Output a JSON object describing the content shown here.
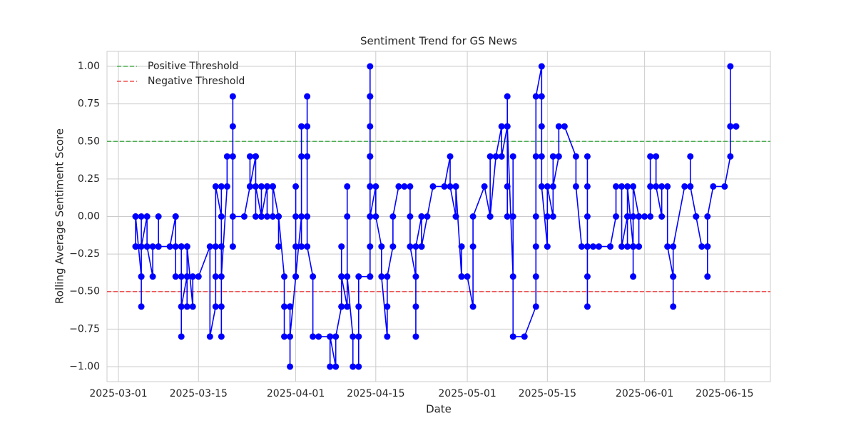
{
  "chart_data": {
    "type": "line",
    "title": "Sentiment Trend for GS News",
    "x_label": "Date",
    "y_label": "Rolling Average Sentiment Score",
    "grid": true,
    "legend_position": "upper left",
    "xlim": [
      "2025-02-27",
      "2025-06-23"
    ],
    "xticks": [
      "2025-03-01",
      "2025-03-15",
      "2025-04-01",
      "2025-04-15",
      "2025-05-01",
      "2025-05-15",
      "2025-06-01",
      "2025-06-15"
    ],
    "ylim": [
      -1.1,
      1.1
    ],
    "yticks": [
      {
        "value": -1,
        "label": "−1.00"
      },
      {
        "value": -0.75,
        "label": "−0.75"
      },
      {
        "value": -0.5,
        "label": "−0.50"
      },
      {
        "value": -0.25,
        "label": "−0.25"
      },
      {
        "value": 0,
        "label": "0.00"
      },
      {
        "value": 0.25,
        "label": "0.25"
      },
      {
        "value": 0.5,
        "label": "0.50"
      },
      {
        "value": 0.75,
        "label": "0.75"
      },
      {
        "value": 1,
        "label": "1.00"
      }
    ],
    "thresholds": [
      {
        "name": "Positive Threshold",
        "value": 0.5,
        "color": "#4caf50"
      },
      {
        "name": "Negative Threshold",
        "value": -0.5,
        "color": "#f05050"
      }
    ],
    "series": [
      {
        "color": "#0000ff",
        "x": [
          "2025-03-04",
          "2025-03-04",
          "2025-03-04",
          "2025-03-04",
          "2025-03-05",
          "2025-03-05",
          "2025-03-05",
          "2025-03-05",
          "2025-03-05",
          "2025-03-06",
          "2025-03-06",
          "2025-03-06",
          "2025-03-06",
          "2025-03-07",
          "2025-03-07",
          "2025-03-08",
          "2025-03-08",
          "2025-03-08",
          "2025-03-10",
          "2025-03-11",
          "2025-03-11",
          "2025-03-11",
          "2025-03-11",
          "2025-03-12",
          "2025-03-12",
          "2025-03-12",
          "2025-03-12",
          "2025-03-12",
          "2025-03-12",
          "2025-03-13",
          "2025-03-13",
          "2025-03-13",
          "2025-03-13",
          "2025-03-13",
          "2025-03-14",
          "2025-03-14",
          "2025-03-15",
          "2025-03-17",
          "2025-03-17",
          "2025-03-18",
          "2025-03-18",
          "2025-03-18",
          "2025-03-18",
          "2025-03-19",
          "2025-03-19",
          "2025-03-19",
          "2025-03-19",
          "2025-03-19",
          "2025-03-19",
          "2025-03-20",
          "2025-03-20",
          "2025-03-21",
          "2025-03-21",
          "2025-03-21",
          "2025-03-21",
          "2025-03-21",
          "2025-03-23",
          "2025-03-24",
          "2025-03-24",
          "2025-03-24",
          "2025-03-25",
          "2025-03-25",
          "2025-03-25",
          "2025-03-25",
          "2025-03-26",
          "2025-03-26",
          "2025-03-26",
          "2025-03-27",
          "2025-03-27",
          "2025-03-27",
          "2025-03-28",
          "2025-03-28",
          "2025-03-28",
          "2025-03-29",
          "2025-03-29",
          "2025-03-29",
          "2025-03-30",
          "2025-03-30",
          "2025-03-30",
          "2025-03-31",
          "2025-03-31",
          "2025-03-31",
          "2025-03-31",
          "2025-04-01",
          "2025-04-01",
          "2025-04-01",
          "2025-04-01",
          "2025-04-01",
          "2025-04-02",
          "2025-04-02",
          "2025-04-02",
          "2025-04-02",
          "2025-04-03",
          "2025-04-03",
          "2025-04-03",
          "2025-04-03",
          "2025-04-03",
          "2025-04-04",
          "2025-04-04",
          "2025-04-05",
          "2025-04-07",
          "2025-04-07",
          "2025-04-07",
          "2025-04-08",
          "2025-04-08",
          "2025-04-09",
          "2025-04-09",
          "2025-04-09",
          "2025-04-09",
          "2025-04-09",
          "2025-04-10",
          "2025-04-10",
          "2025-04-10",
          "2025-04-10",
          "2025-04-11",
          "2025-04-11",
          "2025-04-12",
          "2025-04-12",
          "2025-04-12",
          "2025-04-12",
          "2025-04-14",
          "2025-04-14",
          "2025-04-14",
          "2025-04-14",
          "2025-04-14",
          "2025-04-14",
          "2025-04-14",
          "2025-04-14",
          "2025-04-14",
          "2025-04-14",
          "2025-04-14",
          "2025-04-14",
          "2025-04-14",
          "2025-04-15",
          "2025-04-15",
          "2025-04-16",
          "2025-04-16",
          "2025-04-17",
          "2025-04-17",
          "2025-04-17",
          "2025-04-18",
          "2025-04-18",
          "2025-04-19",
          "2025-04-20",
          "2025-04-21",
          "2025-04-21",
          "2025-04-21",
          "2025-04-22",
          "2025-04-22",
          "2025-04-22",
          "2025-04-22",
          "2025-04-23",
          "2025-04-23",
          "2025-04-23",
          "2025-04-23",
          "2025-04-24",
          "2025-04-25",
          "2025-04-27",
          "2025-04-28",
          "2025-04-28",
          "2025-04-29",
          "2025-04-29",
          "2025-04-29",
          "2025-04-29",
          "2025-04-30",
          "2025-04-30",
          "2025-04-30",
          "2025-05-01",
          "2025-05-02",
          "2025-05-02",
          "2025-05-02",
          "2025-05-04",
          "2025-05-05",
          "2025-05-05",
          "2025-05-05",
          "2025-05-06",
          "2025-05-07",
          "2025-05-07",
          "2025-05-08",
          "2025-05-08",
          "2025-05-08",
          "2025-05-08",
          "2025-05-08",
          "2025-05-09",
          "2025-05-09",
          "2025-05-09",
          "2025-05-09",
          "2025-05-11",
          "2025-05-13",
          "2025-05-13",
          "2025-05-13",
          "2025-05-13",
          "2025-05-13",
          "2025-05-13",
          "2025-05-14",
          "2025-05-14",
          "2025-05-14",
          "2025-05-14",
          "2025-05-14",
          "2025-05-15",
          "2025-05-15",
          "2025-05-15",
          "2025-05-16",
          "2025-05-16",
          "2025-05-16",
          "2025-05-17",
          "2025-05-17",
          "2025-05-18",
          "2025-05-20",
          "2025-05-20",
          "2025-05-21",
          "2025-05-22",
          "2025-05-22",
          "2025-05-22",
          "2025-05-22",
          "2025-05-22",
          "2025-05-22",
          "2025-05-22",
          "2025-05-23",
          "2025-05-24",
          "2025-05-26",
          "2025-05-27",
          "2025-05-27",
          "2025-05-28",
          "2025-05-28",
          "2025-05-29",
          "2025-05-29",
          "2025-05-29",
          "2025-05-29",
          "2025-05-30",
          "2025-05-30",
          "2025-05-30",
          "2025-05-30",
          "2025-05-30",
          "2025-05-31",
          "2025-05-31",
          "2025-05-31",
          "2025-06-01",
          "2025-06-02",
          "2025-06-02",
          "2025-06-02",
          "2025-06-03",
          "2025-06-03",
          "2025-06-04",
          "2025-06-04",
          "2025-06-05",
          "2025-06-05",
          "2025-06-06",
          "2025-06-06",
          "2025-06-06",
          "2025-06-06",
          "2025-06-08",
          "2025-06-09",
          "2025-06-09",
          "2025-06-09",
          "2025-06-10",
          "2025-06-10",
          "2025-06-11",
          "2025-06-12",
          "2025-06-12",
          "2025-06-12",
          "2025-06-12",
          "2025-06-13",
          "2025-06-15",
          "2025-06-16",
          "2025-06-16",
          "2025-06-16",
          "2025-06-16",
          "2025-06-17",
          "2025-06-17"
        ],
        "values": [
          -0.2,
          0,
          -0.2,
          0,
          -0.4,
          -0.6,
          -0.4,
          0,
          -0.2,
          0,
          -0.2,
          0,
          -0.2,
          -0.4,
          -0.2,
          -0.2,
          0,
          -0.2,
          -0.2,
          0,
          -0.2,
          0,
          -0.4,
          -0.4,
          -0.2,
          -0.6,
          -0.8,
          -0.2,
          -0.6,
          -0.4,
          -0.2,
          -0.6,
          -0.4,
          -0.2,
          -0.6,
          -0.4,
          -0.4,
          -0.2,
          -0.8,
          -0.6,
          -0.4,
          -0.2,
          0.2,
          0,
          0.2,
          -0.6,
          -0.8,
          -0.2,
          -0.4,
          0.2,
          0.4,
          0.4,
          0.6,
          0.8,
          -0.2,
          0,
          0,
          0.2,
          0.4,
          0.2,
          0.4,
          0,
          0.4,
          0.2,
          0,
          0.2,
          0,
          0.2,
          0,
          0.2,
          0.2,
          0,
          0.2,
          0,
          -0.2,
          0,
          -0.4,
          -0.8,
          -0.6,
          -0.6,
          -0.6,
          -1.0,
          -0.8,
          -0.4,
          0,
          0.2,
          -0.2,
          -0.4,
          0,
          -0.2,
          0.4,
          0.6,
          0.6,
          0.8,
          0.4,
          0,
          -0.2,
          -0.4,
          -0.8,
          -0.8,
          -0.8,
          -1.0,
          -0.8,
          -1.0,
          -0.8,
          -0.6,
          -0.4,
          -0.2,
          -0.6,
          -0.4,
          -0.6,
          0.2,
          0,
          -0.4,
          -0.8,
          -1.0,
          -1.0,
          -0.8,
          -0.6,
          -0.4,
          -0.4,
          -0.2,
          0,
          0.2,
          0.4,
          0.8,
          1.0,
          0.6,
          0.2,
          -0.4,
          0.4,
          0.8,
          0,
          0.2,
          0,
          -0.2,
          -0.4,
          -0.8,
          -0.6,
          -0.4,
          -0.2,
          0,
          0.2,
          0.2,
          0.2,
          0,
          -0.2,
          -0.4,
          -0.8,
          -0.6,
          -0.2,
          0,
          -0.2,
          0,
          -0.2,
          0,
          0.2,
          0.2,
          0.4,
          0.2,
          0,
          0.2,
          0,
          0.2,
          -0.4,
          -0.2,
          -0.4,
          -0.4,
          -0.6,
          -0.2,
          0,
          0.2,
          0,
          0.4,
          0,
          0.4,
          0.6,
          0.4,
          0.6,
          0.2,
          0,
          0.8,
          0.6,
          -0.4,
          0.4,
          0,
          -0.8,
          -0.8,
          -0.6,
          -0.4,
          -0.2,
          0,
          0.4,
          0.8,
          1.0,
          0.6,
          0.8,
          0.4,
          0.2,
          -0.2,
          0,
          0.2,
          0,
          0.4,
          0.2,
          0.4,
          0.6,
          0.6,
          0.4,
          0.2,
          -0.2,
          -0.2,
          -0.6,
          -0.4,
          0.2,
          0.4,
          0,
          -0.2,
          -0.2,
          -0.2,
          -0.2,
          0,
          0.2,
          0.2,
          -0.2,
          0,
          -0.2,
          0,
          0.2,
          -0.2,
          0,
          -0.2,
          -0.4,
          0.2,
          0,
          -0.2,
          0,
          0,
          0,
          0.2,
          0.4,
          0.4,
          0.2,
          0,
          0.2,
          0.2,
          -0.2,
          -0.4,
          -0.6,
          -0.4,
          -0.2,
          0.2,
          0.2,
          0.4,
          0.2,
          0,
          0,
          -0.2,
          -0.2,
          -0.4,
          -0.2,
          0,
          0.2,
          0.2,
          0.4,
          0.6,
          1.0,
          0.6,
          0.6,
          0.6
        ]
      }
    ]
  }
}
